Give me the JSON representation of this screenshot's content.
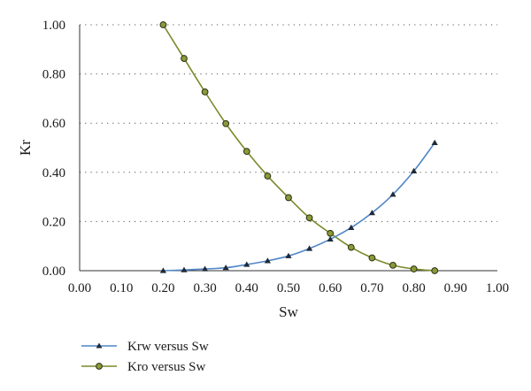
{
  "chart_data": {
    "type": "line",
    "title": "",
    "xlabel": "Sw",
    "ylabel": "Kr",
    "xlim": [
      0,
      1
    ],
    "ylim": [
      0,
      1
    ],
    "x_ticks": [
      "0.00",
      "0.10",
      "0.20",
      "0.30",
      "0.40",
      "0.50",
      "0.60",
      "0.70",
      "0.80",
      "0.90",
      "1.00"
    ],
    "y_ticks": [
      "0.00",
      "0.20",
      "0.40",
      "0.60",
      "0.80",
      "1.00"
    ],
    "grid": "horizontal-dotted",
    "legend_position": "bottom-left",
    "x": [
      0.2,
      0.25,
      0.3,
      0.35,
      0.4,
      0.45,
      0.5,
      0.55,
      0.6,
      0.65,
      0.7,
      0.75,
      0.8,
      0.85
    ],
    "series": [
      {
        "name": "Krw versus Sw",
        "marker": "triangle",
        "color": "#4f86c6",
        "values": [
          0.0,
          0.003,
          0.007,
          0.012,
          0.025,
          0.04,
          0.06,
          0.09,
          0.128,
          0.175,
          0.235,
          0.31,
          0.405,
          0.52
        ]
      },
      {
        "name": "Kro versus Sw",
        "marker": "circle",
        "color": "#7a8a2a",
        "values": [
          1.0,
          0.863,
          0.727,
          0.598,
          0.485,
          0.385,
          0.297,
          0.215,
          0.152,
          0.095,
          0.052,
          0.022,
          0.007,
          0.0
        ]
      }
    ]
  }
}
